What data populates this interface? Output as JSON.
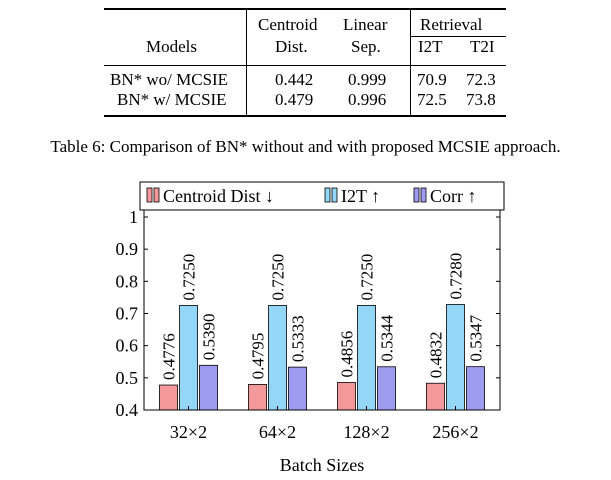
{
  "table": {
    "headers": {
      "models": "Models",
      "centroid_line1": "Centroid",
      "centroid_line2": "Dist.",
      "linear_line1": "Linear",
      "linear_line2": "Sep.",
      "retrieval": "Retrieval",
      "i2t": "I2T",
      "t2i": "T2I"
    },
    "rows": [
      {
        "model": "BN* wo/ MCSIE",
        "centroid": "0.442",
        "linear": "0.999",
        "i2t": "70.9",
        "t2i": "72.3"
      },
      {
        "model": "BN* w/ MCSIE",
        "centroid": "0.479",
        "linear": "0.996",
        "i2t": "72.5",
        "t2i": "73.8"
      }
    ]
  },
  "caption": "Table 6: Comparison of BN* without and with proposed MCSIE approach.",
  "chart_data": {
    "type": "bar",
    "categories": [
      "32×2",
      "64×2",
      "128×2",
      "256×2"
    ],
    "xlabel": "Batch Sizes",
    "ylabel": "",
    "ylim": [
      0.4,
      1.0
    ],
    "yticks": [
      "0.4",
      "0.5",
      "0.6",
      "0.7",
      "0.8",
      "0.9",
      "1"
    ],
    "legend_position": "top",
    "series": [
      {
        "name": "Centroid Dist ↓",
        "color": "#f4999b",
        "labels": [
          "0.4776",
          "0.4795",
          "0.4856",
          "0.4832"
        ],
        "values": [
          0.4776,
          0.4795,
          0.4856,
          0.4832
        ]
      },
      {
        "name": "I2T ↑",
        "color": "#93d6f5",
        "labels": [
          "0.7250",
          "0.7250",
          "0.7250",
          "0.7280"
        ],
        "values": [
          0.725,
          0.725,
          0.725,
          0.728
        ]
      },
      {
        "name": "Corr ↑",
        "color": "#9e9cf0",
        "labels": [
          "0.5390",
          "0.5333",
          "0.5344",
          "0.5347"
        ],
        "values": [
          0.539,
          0.5333,
          0.5344,
          0.5347
        ]
      }
    ]
  }
}
